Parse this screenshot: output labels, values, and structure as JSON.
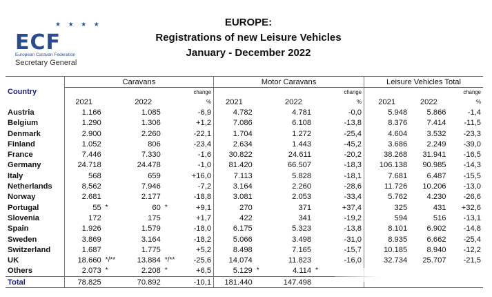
{
  "logo": {
    "text": "ECF",
    "stars": "★ ★ ★ ★",
    "subtitle": "European Caravan Federation",
    "secgen": "Secretary General"
  },
  "title": {
    "line1": "EUROPE:",
    "line2": "Registrations of new Leisure Vehicles",
    "line3": "January - December 2022"
  },
  "table": {
    "country_header": "Country",
    "groups": [
      "Caravans",
      "Motor Caravans",
      "Leisure Vehicles Total"
    ],
    "year1": "2021",
    "year2": "2022",
    "change_label": "change",
    "change_unit": "%",
    "rows": [
      {
        "country": "Austria",
        "c21": "1.166",
        "c21m": "",
        "c22": "1.085",
        "c22m": "",
        "cch": "-6,9",
        "m21": "4.782",
        "m21m": "",
        "m22": "4.781",
        "m22m": "",
        "mch": "-0,0",
        "t21": "5.948",
        "t22": "5.866",
        "tch": "-1,4"
      },
      {
        "country": "Belgium",
        "c21": "1.290",
        "c21m": "",
        "c22": "1.306",
        "c22m": "",
        "cch": "+1,2",
        "m21": "7.086",
        "m21m": "",
        "m22": "6.108",
        "m22m": "",
        "mch": "-13,8",
        "t21": "8.376",
        "t22": "7.414",
        "tch": "-11,5"
      },
      {
        "country": "Denmark",
        "c21": "2.900",
        "c21m": "",
        "c22": "2.260",
        "c22m": "",
        "cch": "-22,1",
        "m21": "1.704",
        "m21m": "",
        "m22": "1.272",
        "m22m": "",
        "mch": "-25,4",
        "t21": "4.604",
        "t22": "3.532",
        "tch": "-23,3"
      },
      {
        "country": "Finland",
        "c21": "1.052",
        "c21m": "",
        "c22": "806",
        "c22m": "",
        "cch": "-23,4",
        "m21": "2.634",
        "m21m": "",
        "m22": "1.443",
        "m22m": "",
        "mch": "-45,2",
        "t21": "3.686",
        "t22": "2.249",
        "tch": "-39,0"
      },
      {
        "country": "France",
        "c21": "7.446",
        "c21m": "",
        "c22": "7.330",
        "c22m": "",
        "cch": "-1,6",
        "m21": "30.822",
        "m21m": "",
        "m22": "24.611",
        "m22m": "",
        "mch": "-20,2",
        "t21": "38.268",
        "t22": "31.941",
        "tch": "-16,5"
      },
      {
        "country": "Germany",
        "c21": "24.718",
        "c21m": "",
        "c22": "24.478",
        "c22m": "",
        "cch": "-1,0",
        "m21": "81.420",
        "m21m": "",
        "m22": "66.507",
        "m22m": "",
        "mch": "-18,3",
        "t21": "106.138",
        "t22": "90.985",
        "tch": "-14,3"
      },
      {
        "country": "Italy",
        "c21": "568",
        "c21m": "",
        "c22": "659",
        "c22m": "",
        "cch": "+16,0",
        "m21": "7.113",
        "m21m": "",
        "m22": "5.828",
        "m22m": "",
        "mch": "-18,1",
        "t21": "7.681",
        "t22": "6.487",
        "tch": "-15,5"
      },
      {
        "country": "Netherlands",
        "c21": "8.562",
        "c21m": "",
        "c22": "7.946",
        "c22m": "",
        "cch": "-7,2",
        "m21": "3.164",
        "m21m": "",
        "m22": "2.260",
        "m22m": "",
        "mch": "-28,6",
        "t21": "11.726",
        "t22": "10.206",
        "tch": "-13,0"
      },
      {
        "country": "Norway",
        "c21": "2.681",
        "c21m": "",
        "c22": "2.177",
        "c22m": "",
        "cch": "-18,8",
        "m21": "3.081",
        "m21m": "",
        "m22": "2.053",
        "m22m": "",
        "mch": "-33,4",
        "t21": "5.762",
        "t22": "4.230",
        "tch": "-26,6"
      },
      {
        "country": "Portugal",
        "c21": "55",
        "c21m": "*",
        "c22": "60",
        "c22m": "*",
        "cch": "+9,1",
        "m21": "270",
        "m21m": "",
        "m22": "371",
        "m22m": "",
        "mch": "+37,4",
        "t21": "325",
        "t22": "431",
        "tch": "+32,6"
      },
      {
        "country": "Slovenia",
        "c21": "172",
        "c21m": "",
        "c22": "175",
        "c22m": "",
        "cch": "+1,7",
        "m21": "422",
        "m21m": "",
        "m22": "341",
        "m22m": "",
        "mch": "-19,2",
        "t21": "594",
        "t22": "516",
        "tch": "-13,1"
      },
      {
        "country": "Spain",
        "c21": "1.926",
        "c21m": "",
        "c22": "1.579",
        "c22m": "",
        "cch": "-18,0",
        "m21": "6.175",
        "m21m": "",
        "m22": "5.323",
        "m22m": "",
        "mch": "-13,8",
        "t21": "8.101",
        "t22": "6.902",
        "tch": "-14,8"
      },
      {
        "country": "Sweden",
        "c21": "3.869",
        "c21m": "",
        "c22": "3.164",
        "c22m": "",
        "cch": "-18,2",
        "m21": "5.066",
        "m21m": "",
        "m22": "3.498",
        "m22m": "",
        "mch": "-31,0",
        "t21": "8.935",
        "t22": "6.662",
        "tch": "-25,4"
      },
      {
        "country": "Switzerland",
        "c21": "1.687",
        "c21m": "",
        "c22": "1.775",
        "c22m": "",
        "cch": "+5,2",
        "m21": "8.498",
        "m21m": "",
        "m22": "7.165",
        "m22m": "",
        "mch": "-15,7",
        "t21": "10.185",
        "t22": "8.940",
        "tch": "-12,2"
      },
      {
        "country": "UK",
        "c21": "18.660",
        "c21m": "*/**",
        "c22": "13.884",
        "c22m": "*/**",
        "cch": "-25,6",
        "m21": "14.074",
        "m21m": "",
        "m22": "11.823",
        "m22m": "",
        "mch": "-16,0",
        "t21": "32.734",
        "t22": "25.707",
        "tch": "-21,5"
      },
      {
        "country": "Others",
        "c21": "2.073",
        "c21m": "*",
        "c22": "2.208",
        "c22m": "*",
        "cch": "+6,5",
        "m21": "5.129",
        "m21m": "*",
        "m22": "4.114",
        "m22m": "*",
        "mch": "",
        "t21": "",
        "t22": "",
        "tch": ""
      }
    ],
    "total": {
      "country": "Total",
      "c21": "78.825",
      "c22": "70.892",
      "cch": "-10,1",
      "m21": "181.440",
      "m22": "147.498"
    }
  }
}
